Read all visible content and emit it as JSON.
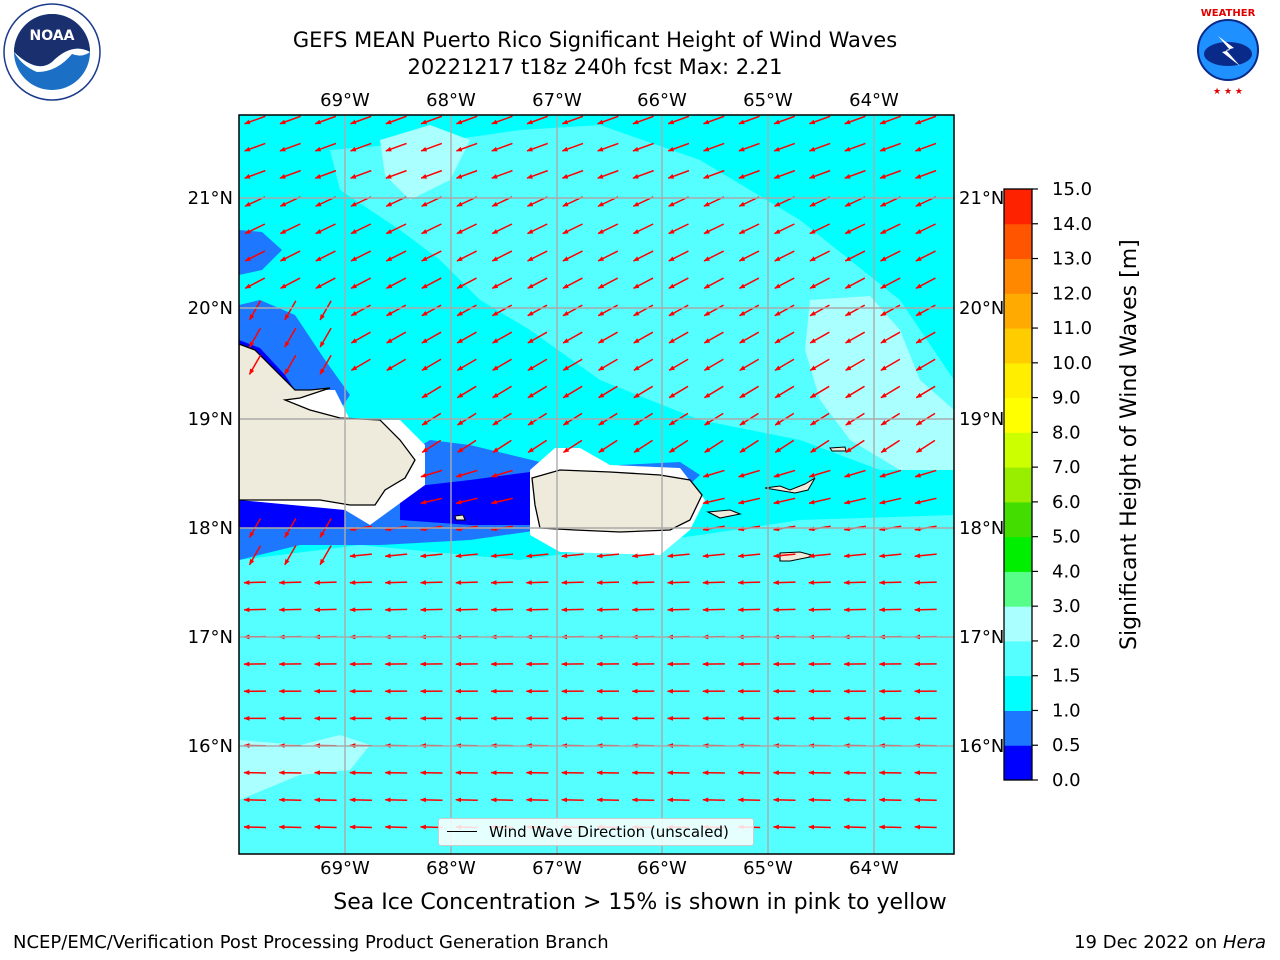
{
  "header": {
    "title_line1": "GEFS MEAN Puerto Rico Significant Height of Wind Waves",
    "title_line2": "20221217 t18z 240h fcst   Max: 2.21"
  },
  "logos": {
    "left": {
      "icon": "noaa-logo",
      "text": "NOAA"
    },
    "right": {
      "icon": "national-weather-service-logo",
      "text": "NATIONAL WEATHER SERVICE"
    }
  },
  "map": {
    "longitude_labels": [
      "69°W",
      "68°W",
      "67°W",
      "66°W",
      "65°W",
      "64°W"
    ],
    "latitude_labels": [
      "21°N",
      "20°N",
      "19°N",
      "18°N",
      "17°N",
      "16°N"
    ],
    "land_color": "#efebdc",
    "arrow_color": "#ff0000",
    "legend_label": "Wind Wave Direction (unscaled)"
  },
  "colorbar": {
    "label": "Significant Height of Wind Waves [m]",
    "tick_labels": [
      "0.0",
      "0.5",
      "1.0",
      "1.5",
      "2.0",
      "3.0",
      "4.0",
      "5.0",
      "6.0",
      "7.0",
      "8.0",
      "9.0",
      "10.0",
      "11.0",
      "12.0",
      "13.0",
      "14.0",
      "15.0"
    ],
    "colors": [
      "#0000ff",
      "#1e78ff",
      "#00ffff",
      "#55ffff",
      "#aaffff",
      "#55ff88",
      "#00ee00",
      "#44dd00",
      "#99ee00",
      "#ccff00",
      "#ffff00",
      "#ffee00",
      "#ffcc00",
      "#ffaa00",
      "#ff8800",
      "#ff5500",
      "#ff2200"
    ]
  },
  "footer": {
    "sea_ice_note": "Sea Ice Concentration > 15% is shown in pink to yellow",
    "branch": "NCEP/EMC/Verification Post Processing Product Generation Branch",
    "date": "19 Dec 2022 on ",
    "host": "Hera"
  }
}
